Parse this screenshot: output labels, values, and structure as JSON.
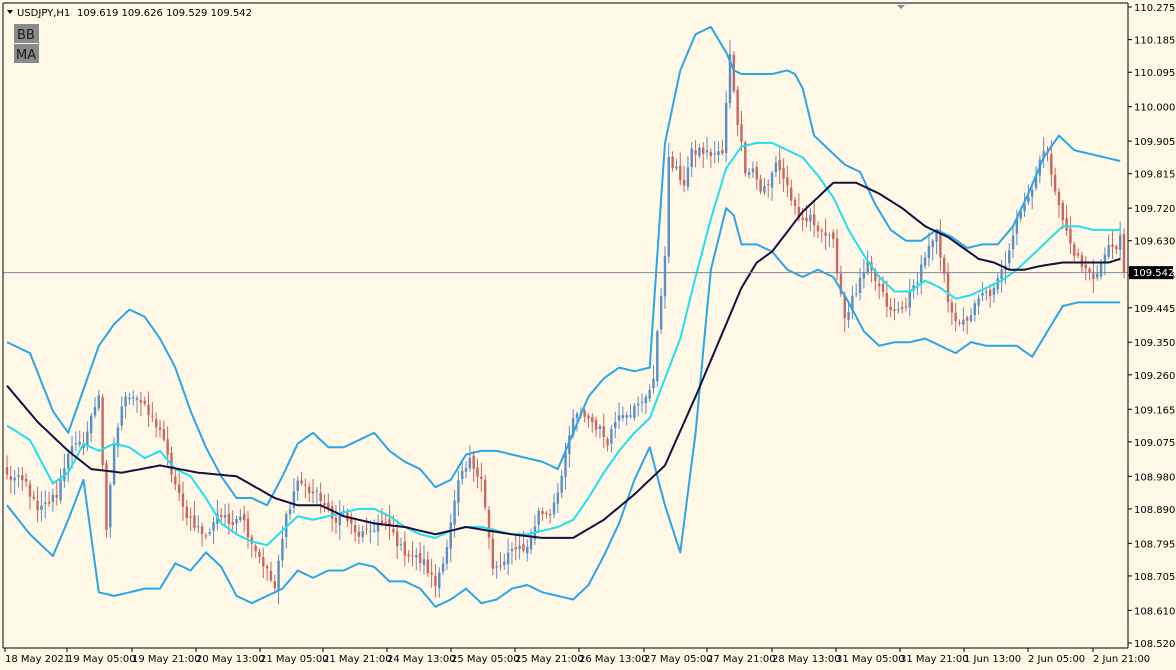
{
  "symbol_info": {
    "symbol_timeframe": "USDJPY,H1",
    "ohlc": "109.619 109.626 109.529 109.542"
  },
  "indicator_buttons": [
    "BB",
    "MA"
  ],
  "current_price_label": "109.542",
  "colors": {
    "background": "#fff8e7",
    "bull_candle": "#5b8ec4",
    "bear_candle": "#c9665f",
    "bollinger_bands": "#2aa6e8",
    "bollinger_middle": "#1fe0ee",
    "moving_average": "#14103f",
    "price_line": "#7b8a9a",
    "axis": "#000000",
    "price_label_bg": "#000000"
  },
  "chart_data": {
    "type": "candlestick",
    "symbol": "USDJPY",
    "timeframe": "H1",
    "y_axis_ticks": [
      "110.275",
      "110.185",
      "110.095",
      "110.000",
      "109.905",
      "109.815",
      "109.720",
      "109.630",
      "109.535",
      "109.445",
      "109.350",
      "109.260",
      "109.165",
      "109.075",
      "108.980",
      "108.890",
      "108.795",
      "108.705",
      "108.610",
      "108.520"
    ],
    "ylim": [
      108.51,
      110.285
    ],
    "x_axis_labels": [
      "18 May 2021",
      "19 May 05:00",
      "19 May 21:00",
      "20 May 13:00",
      "21 May 05:00",
      "21 May 21:00",
      "24 May 13:00",
      "25 May 05:00",
      "25 May 21:00",
      "26 May 13:00",
      "27 May 05:00",
      "27 May 21:00",
      "28 May 13:00",
      "31 May 05:00",
      "31 May 21:00",
      "1 Jun 13:00",
      "2 Jun 05:00",
      "2 Jun 21:00"
    ],
    "current_price": 109.542,
    "close_anchors": [
      [
        0,
        108.98
      ],
      [
        5,
        108.96
      ],
      [
        8,
        108.88
      ],
      [
        13,
        108.93
      ],
      [
        16,
        109.05
      ],
      [
        20,
        109.07
      ],
      [
        24,
        109.21
      ],
      [
        26,
        108.82
      ],
      [
        28,
        109.07
      ],
      [
        31,
        109.21
      ],
      [
        34,
        109.2
      ],
      [
        37,
        109.15
      ],
      [
        40,
        109.11
      ],
      [
        43,
        108.99
      ],
      [
        46,
        108.89
      ],
      [
        49,
        108.85
      ],
      [
        52,
        108.81
      ],
      [
        55,
        108.88
      ],
      [
        58,
        108.85
      ],
      [
        61,
        108.88
      ],
      [
        64,
        108.8
      ],
      [
        67,
        108.74
      ],
      [
        70,
        108.67
      ],
      [
        73,
        108.87
      ],
      [
        76,
        108.97
      ],
      [
        79,
        108.94
      ],
      [
        82,
        108.92
      ],
      [
        85,
        108.86
      ],
      [
        88,
        108.88
      ],
      [
        91,
        108.82
      ],
      [
        94,
        108.82
      ],
      [
        97,
        108.85
      ],
      [
        100,
        108.84
      ],
      [
        103,
        108.78
      ],
      [
        106,
        108.76
      ],
      [
        109,
        108.74
      ],
      [
        112,
        108.68
      ],
      [
        115,
        108.79
      ],
      [
        118,
        108.96
      ],
      [
        121,
        109.02
      ],
      [
        124,
        108.98
      ],
      [
        127,
        108.72
      ],
      [
        130,
        108.74
      ],
      [
        133,
        108.79
      ],
      [
        136,
        108.78
      ],
      [
        139,
        108.88
      ],
      [
        142,
        108.88
      ],
      [
        145,
        108.98
      ],
      [
        148,
        109.14
      ],
      [
        151,
        109.15
      ],
      [
        154,
        109.12
      ],
      [
        157,
        109.08
      ],
      [
        160,
        109.16
      ],
      [
        163,
        109.16
      ],
      [
        166,
        109.18
      ],
      [
        169,
        109.25
      ],
      [
        172,
        109.6
      ],
      [
        173,
        109.85
      ],
      [
        175,
        109.82
      ],
      [
        177,
        109.79
      ],
      [
        179,
        109.87
      ],
      [
        181,
        109.88
      ],
      [
        183,
        109.87
      ],
      [
        185,
        109.87
      ],
      [
        187,
        109.87
      ],
      [
        189,
        110.14
      ],
      [
        191,
        109.96
      ],
      [
        193,
        109.83
      ],
      [
        195,
        109.83
      ],
      [
        197,
        109.77
      ],
      [
        199,
        109.78
      ],
      [
        201,
        109.85
      ],
      [
        204,
        109.78
      ],
      [
        207,
        109.68
      ],
      [
        210,
        109.69
      ],
      [
        213,
        109.66
      ],
      [
        216,
        109.62
      ],
      [
        219,
        109.42
      ],
      [
        222,
        109.49
      ],
      [
        225,
        109.56
      ],
      [
        228,
        109.5
      ],
      [
        231,
        109.43
      ],
      [
        234,
        109.44
      ],
      [
        237,
        109.5
      ],
      [
        240,
        109.59
      ],
      [
        243,
        109.64
      ],
      [
        246,
        109.47
      ],
      [
        249,
        109.39
      ],
      [
        252,
        109.43
      ],
      [
        255,
        109.48
      ],
      [
        258,
        109.49
      ],
      [
        261,
        109.57
      ],
      [
        264,
        109.7
      ],
      [
        267,
        109.75
      ],
      [
        270,
        109.85
      ],
      [
        272,
        109.88
      ],
      [
        275,
        109.72
      ],
      [
        278,
        109.62
      ],
      [
        281,
        109.56
      ],
      [
        284,
        109.53
      ],
      [
        286,
        109.57
      ],
      [
        288,
        109.61
      ],
      [
        290,
        109.62
      ],
      [
        292,
        109.64
      ]
    ],
    "bb_upper": [
      [
        0,
        109.35
      ],
      [
        6,
        109.32
      ],
      [
        12,
        109.16
      ],
      [
        16,
        109.1
      ],
      [
        20,
        109.22
      ],
      [
        24,
        109.34
      ],
      [
        28,
        109.4
      ],
      [
        32,
        109.44
      ],
      [
        36,
        109.42
      ],
      [
        40,
        109.36
      ],
      [
        44,
        109.28
      ],
      [
        48,
        109.16
      ],
      [
        52,
        109.06
      ],
      [
        56,
        108.98
      ],
      [
        60,
        108.92
      ],
      [
        64,
        108.92
      ],
      [
        68,
        108.9
      ],
      [
        72,
        108.98
      ],
      [
        76,
        109.07
      ],
      [
        80,
        109.1
      ],
      [
        84,
        109.06
      ],
      [
        88,
        109.06
      ],
      [
        92,
        109.08
      ],
      [
        96,
        109.1
      ],
      [
        100,
        109.05
      ],
      [
        104,
        109.02
      ],
      [
        108,
        109.0
      ],
      [
        112,
        108.95
      ],
      [
        116,
        108.97
      ],
      [
        120,
        109.04
      ],
      [
        124,
        109.05
      ],
      [
        128,
        109.05
      ],
      [
        132,
        109.04
      ],
      [
        136,
        109.03
      ],
      [
        140,
        109.02
      ],
      [
        144,
        109.0
      ],
      [
        148,
        109.1
      ],
      [
        152,
        109.2
      ],
      [
        156,
        109.25
      ],
      [
        160,
        109.28
      ],
      [
        164,
        109.27
      ],
      [
        168,
        109.28
      ],
      [
        172,
        109.9
      ],
      [
        176,
        110.1
      ],
      [
        180,
        110.2
      ],
      [
        184,
        110.22
      ],
      [
        188,
        110.15
      ],
      [
        190,
        110.1
      ],
      [
        192,
        110.09
      ],
      [
        196,
        110.09
      ],
      [
        200,
        110.09
      ],
      [
        204,
        110.1
      ],
      [
        206,
        110.09
      ],
      [
        208,
        110.05
      ],
      [
        211,
        109.92
      ],
      [
        215,
        109.88
      ],
      [
        219,
        109.84
      ],
      [
        223,
        109.82
      ],
      [
        227,
        109.73
      ],
      [
        231,
        109.66
      ],
      [
        235,
        109.63
      ],
      [
        239,
        109.63
      ],
      [
        243,
        109.66
      ],
      [
        247,
        109.64
      ],
      [
        251,
        109.61
      ],
      [
        255,
        109.62
      ],
      [
        259,
        109.62
      ],
      [
        263,
        109.67
      ],
      [
        267,
        109.76
      ],
      [
        271,
        109.86
      ],
      [
        275,
        109.92
      ],
      [
        279,
        109.88
      ],
      [
        283,
        109.87
      ],
      [
        287,
        109.86
      ],
      [
        291,
        109.85
      ]
    ],
    "bb_lower": [
      [
        0,
        108.9
      ],
      [
        6,
        108.82
      ],
      [
        12,
        108.76
      ],
      [
        16,
        108.86
      ],
      [
        20,
        108.97
      ],
      [
        24,
        108.66
      ],
      [
        28,
        108.65
      ],
      [
        32,
        108.66
      ],
      [
        36,
        108.67
      ],
      [
        40,
        108.67
      ],
      [
        44,
        108.74
      ],
      [
        48,
        108.72
      ],
      [
        52,
        108.77
      ],
      [
        56,
        108.73
      ],
      [
        60,
        108.65
      ],
      [
        64,
        108.63
      ],
      [
        68,
        108.65
      ],
      [
        72,
        108.67
      ],
      [
        76,
        108.72
      ],
      [
        80,
        108.7
      ],
      [
        84,
        108.72
      ],
      [
        88,
        108.72
      ],
      [
        92,
        108.74
      ],
      [
        96,
        108.73
      ],
      [
        100,
        108.69
      ],
      [
        104,
        108.69
      ],
      [
        108,
        108.67
      ],
      [
        112,
        108.62
      ],
      [
        116,
        108.64
      ],
      [
        120,
        108.67
      ],
      [
        124,
        108.63
      ],
      [
        128,
        108.64
      ],
      [
        132,
        108.67
      ],
      [
        136,
        108.68
      ],
      [
        140,
        108.66
      ],
      [
        144,
        108.65
      ],
      [
        148,
        108.64
      ],
      [
        152,
        108.68
      ],
      [
        156,
        108.76
      ],
      [
        160,
        108.85
      ],
      [
        164,
        108.97
      ],
      [
        168,
        109.06
      ],
      [
        172,
        108.9
      ],
      [
        176,
        108.77
      ],
      [
        180,
        109.1
      ],
      [
        184,
        109.55
      ],
      [
        188,
        109.72
      ],
      [
        190,
        109.7
      ],
      [
        192,
        109.62
      ],
      [
        196,
        109.62
      ],
      [
        200,
        109.6
      ],
      [
        204,
        109.55
      ],
      [
        208,
        109.53
      ],
      [
        212,
        109.55
      ],
      [
        216,
        109.53
      ],
      [
        220,
        109.46
      ],
      [
        224,
        109.38
      ],
      [
        228,
        109.34
      ],
      [
        232,
        109.35
      ],
      [
        236,
        109.35
      ],
      [
        240,
        109.36
      ],
      [
        244,
        109.34
      ],
      [
        248,
        109.32
      ],
      [
        252,
        109.35
      ],
      [
        256,
        109.34
      ],
      [
        260,
        109.34
      ],
      [
        264,
        109.34
      ],
      [
        268,
        109.31
      ],
      [
        272,
        109.38
      ],
      [
        276,
        109.45
      ],
      [
        280,
        109.46
      ],
      [
        284,
        109.46
      ],
      [
        288,
        109.46
      ],
      [
        291,
        109.46
      ]
    ],
    "bb_middle": [
      [
        0,
        109.12
      ],
      [
        6,
        109.08
      ],
      [
        12,
        108.96
      ],
      [
        16,
        108.99
      ],
      [
        20,
        109.07
      ],
      [
        24,
        109.05
      ],
      [
        28,
        109.07
      ],
      [
        32,
        109.06
      ],
      [
        36,
        109.03
      ],
      [
        40,
        109.05
      ],
      [
        44,
        109.0
      ],
      [
        48,
        108.98
      ],
      [
        52,
        108.92
      ],
      [
        56,
        108.85
      ],
      [
        60,
        108.82
      ],
      [
        64,
        108.8
      ],
      [
        68,
        108.79
      ],
      [
        72,
        108.83
      ],
      [
        76,
        108.87
      ],
      [
        80,
        108.86
      ],
      [
        84,
        108.87
      ],
      [
        88,
        108.88
      ],
      [
        92,
        108.89
      ],
      [
        96,
        108.89
      ],
      [
        100,
        108.87
      ],
      [
        104,
        108.84
      ],
      [
        108,
        108.82
      ],
      [
        112,
        108.81
      ],
      [
        116,
        108.83
      ],
      [
        120,
        108.84
      ],
      [
        124,
        108.84
      ],
      [
        128,
        108.83
      ],
      [
        132,
        108.82
      ],
      [
        136,
        108.82
      ],
      [
        140,
        108.83
      ],
      [
        144,
        108.84
      ],
      [
        148,
        108.86
      ],
      [
        152,
        108.92
      ],
      [
        156,
        108.99
      ],
      [
        160,
        109.05
      ],
      [
        164,
        109.1
      ],
      [
        168,
        109.14
      ],
      [
        172,
        109.25
      ],
      [
        176,
        109.36
      ],
      [
        180,
        109.53
      ],
      [
        184,
        109.69
      ],
      [
        188,
        109.83
      ],
      [
        192,
        109.89
      ],
      [
        196,
        109.9
      ],
      [
        200,
        109.9
      ],
      [
        204,
        109.88
      ],
      [
        208,
        109.86
      ],
      [
        212,
        109.81
      ],
      [
        216,
        109.75
      ],
      [
        220,
        109.66
      ],
      [
        224,
        109.59
      ],
      [
        228,
        109.53
      ],
      [
        232,
        109.49
      ],
      [
        236,
        109.49
      ],
      [
        240,
        109.52
      ],
      [
        244,
        109.5
      ],
      [
        248,
        109.47
      ],
      [
        252,
        109.48
      ],
      [
        256,
        109.5
      ],
      [
        260,
        109.52
      ],
      [
        264,
        109.55
      ],
      [
        268,
        109.59
      ],
      [
        272,
        109.63
      ],
      [
        276,
        109.67
      ],
      [
        280,
        109.67
      ],
      [
        284,
        109.66
      ],
      [
        288,
        109.66
      ],
      [
        291,
        109.66
      ]
    ],
    "ma": [
      [
        0,
        109.23
      ],
      [
        8,
        109.13
      ],
      [
        16,
        109.05
      ],
      [
        22,
        109.0
      ],
      [
        30,
        108.99
      ],
      [
        40,
        109.01
      ],
      [
        50,
        108.99
      ],
      [
        60,
        108.98
      ],
      [
        70,
        108.92
      ],
      [
        76,
        108.9
      ],
      [
        82,
        108.9
      ],
      [
        88,
        108.87
      ],
      [
        96,
        108.85
      ],
      [
        104,
        108.84
      ],
      [
        112,
        108.82
      ],
      [
        120,
        108.84
      ],
      [
        126,
        108.83
      ],
      [
        132,
        108.82
      ],
      [
        140,
        108.81
      ],
      [
        148,
        108.81
      ],
      [
        156,
        108.86
      ],
      [
        164,
        108.93
      ],
      [
        172,
        109.01
      ],
      [
        180,
        109.2
      ],
      [
        186,
        109.35
      ],
      [
        192,
        109.5
      ],
      [
        196,
        109.57
      ],
      [
        200,
        109.6
      ],
      [
        208,
        109.71
      ],
      [
        216,
        109.79
      ],
      [
        222,
        109.79
      ],
      [
        228,
        109.76
      ],
      [
        234,
        109.72
      ],
      [
        240,
        109.67
      ],
      [
        246,
        109.64
      ],
      [
        250,
        109.61
      ],
      [
        254,
        109.58
      ],
      [
        258,
        109.57
      ],
      [
        262,
        109.55
      ],
      [
        266,
        109.55
      ],
      [
        270,
        109.56
      ],
      [
        276,
        109.57
      ],
      [
        282,
        109.57
      ],
      [
        288,
        109.57
      ],
      [
        291,
        109.58
      ]
    ]
  }
}
